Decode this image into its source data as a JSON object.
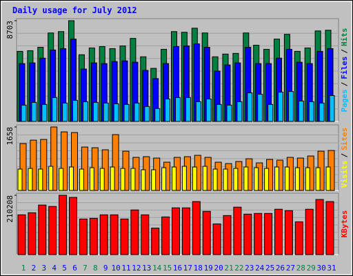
{
  "title": "Daily usage for July 2012",
  "separator": "/",
  "chart_data": [
    {
      "type": "bar",
      "ylim": [
        0,
        8703
      ],
      "yticks": [
        8703
      ],
      "series": [
        {
          "name": "Hits",
          "color": "#008040",
          "values": [
            6056,
            6115,
            6409,
            7644,
            7762,
            8703,
            5762,
            6350,
            6468,
            6292,
            6527,
            7174,
            5586,
            4586,
            6233,
            7762,
            7703,
            8056,
            7644,
            5586,
            5821,
            5880,
            7644,
            6586,
            6233,
            7115,
            7526,
            6056,
            6350,
            7820,
            7879
          ]
        },
        {
          "name": "Files",
          "color": "#0000ff",
          "values": [
            4998,
            5057,
            5468,
            6174,
            6292,
            7115,
            4528,
            5057,
            4998,
            5174,
            5233,
            5116,
            4410,
            3704,
            4998,
            6468,
            6527,
            6703,
            6409,
            4351,
            4880,
            5057,
            6409,
            4998,
            4998,
            5468,
            6233,
            5116,
            4998,
            6056,
            6292
          ]
        },
        {
          "name": "Pages",
          "color": "#00c0ff",
          "values": [
            1411,
            1646,
            1470,
            2058,
            1588,
            1823,
            1705,
            1646,
            1588,
            1529,
            1470,
            1588,
            1294,
            1117,
            1940,
            2058,
            2058,
            1705,
            1940,
            1470,
            1411,
            1705,
            2470,
            2352,
            1470,
            2528,
            2587,
            1764,
            1705,
            1588,
            2234
          ]
        }
      ]
    },
    {
      "type": "bar",
      "ylim": [
        0,
        1658
      ],
      "yticks": [
        1658
      ],
      "series": [
        {
          "name": "Sites",
          "color": "#ff8000",
          "values": [
            1224,
            1314,
            1332,
            1658,
            1530,
            1512,
            1134,
            1116,
            1062,
            1458,
            1026,
            864,
            882,
            846,
            738,
            864,
            882,
            918,
            864,
            738,
            702,
            756,
            828,
            720,
            810,
            792,
            864,
            846,
            900,
            1026,
            1044
          ]
        },
        {
          "name": "Visits",
          "color": "#ffff00",
          "values": [
            558,
            576,
            558,
            630,
            576,
            612,
            558,
            594,
            576,
            612,
            576,
            576,
            540,
            540,
            594,
            612,
            630,
            612,
            630,
            558,
            558,
            576,
            612,
            594,
            576,
            612,
            612,
            594,
            594,
            594,
            612
          ]
        }
      ]
    },
    {
      "type": "bar",
      "ylim": [
        0,
        210208
      ],
      "yticks": [
        210208
      ],
      "categories": [
        "1",
        "2",
        "3",
        "4",
        "5",
        "6",
        "7",
        "8",
        "9",
        "10",
        "11",
        "12",
        "13",
        "14",
        "15",
        "16",
        "17",
        "18",
        "19",
        "20",
        "21",
        "22",
        "23",
        "24",
        "25",
        "26",
        "27",
        "28",
        "29",
        "30",
        "31"
      ],
      "label_colors": [
        "#008040",
        "#0000ff",
        "#0000ff",
        "#0000ff",
        "#0000ff",
        "#0000ff",
        "#008040",
        "#008040",
        "#0000ff",
        "#0000ff",
        "#0000ff",
        "#0000ff",
        "#0000ff",
        "#008040",
        "#008040",
        "#0000ff",
        "#0000ff",
        "#0000ff",
        "#0000ff",
        "#0000ff",
        "#008040",
        "#008040",
        "#0000ff",
        "#0000ff",
        "#0000ff",
        "#0000ff",
        "#0000ff",
        "#008040",
        "#008040",
        "#0000ff",
        "#0000ff"
      ],
      "series": [
        {
          "name": "KBytes",
          "color": "#ff0000",
          "values": [
            140961,
            148380,
            175583,
            170637,
            210208,
            202786,
            126123,
            128596,
            140961,
            140961,
            126123,
            158272,
            140961,
            93974,
            133542,
            165691,
            165691,
            187948,
            153326,
            108812,
            138488,
            168164,
            143434,
            145907,
            145907,
            160745,
            155799,
            116231,
            160745,
            195367,
            187948
          ]
        }
      ]
    }
  ]
}
